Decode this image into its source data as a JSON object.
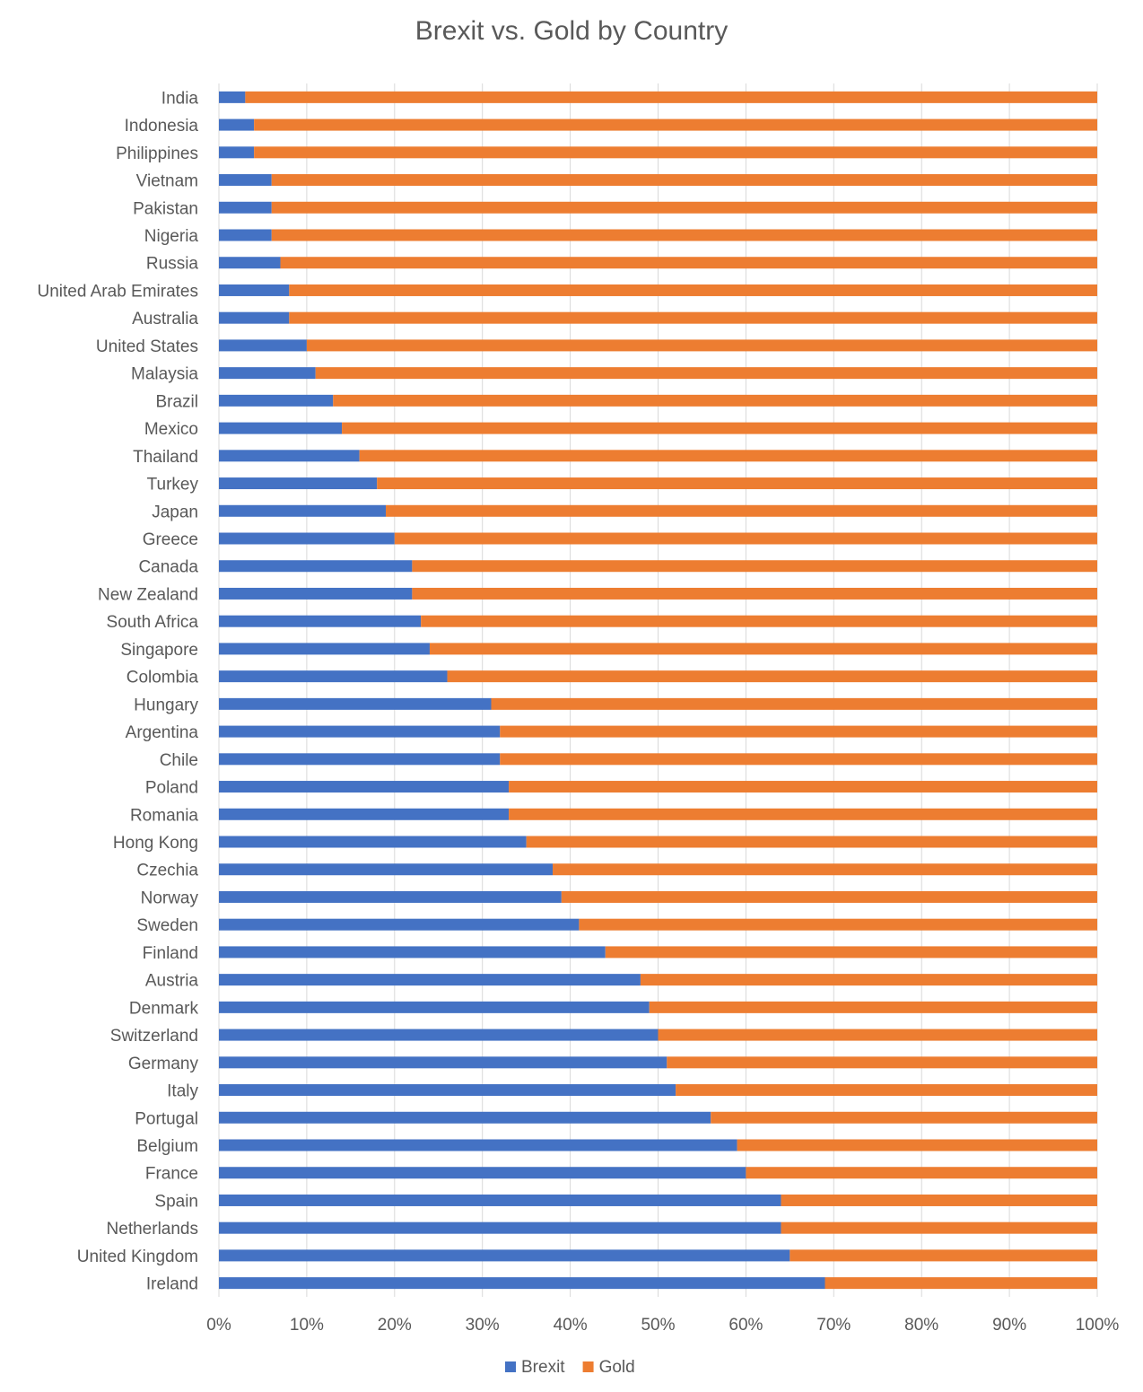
{
  "chart_data": {
    "type": "bar",
    "orientation": "horizontal",
    "stacked": "percent",
    "title": "Brexit vs. Gold by Country",
    "categories": [
      "India",
      "Indonesia",
      "Philippines",
      "Vietnam",
      "Pakistan",
      "Nigeria",
      "Russia",
      "United Arab Emirates",
      "Australia",
      "United States",
      "Malaysia",
      "Brazil",
      "Mexico",
      "Thailand",
      "Turkey",
      "Japan",
      "Greece",
      "Canada",
      "New Zealand",
      "South Africa",
      "Singapore",
      "Colombia",
      "Hungary",
      "Argentina",
      "Chile",
      "Poland",
      "Romania",
      "Hong Kong",
      "Czechia",
      "Norway",
      "Sweden",
      "Finland",
      "Austria",
      "Denmark",
      "Switzerland",
      "Germany",
      "Italy",
      "Portugal",
      "Belgium",
      "France",
      "Spain",
      "Netherlands",
      "United Kingdom",
      "Ireland"
    ],
    "series": [
      {
        "name": "Brexit",
        "color": "#4472C4",
        "values": [
          3,
          4,
          4,
          6,
          6,
          6,
          7,
          8,
          8,
          10,
          11,
          13,
          14,
          16,
          18,
          19,
          20,
          22,
          22,
          23,
          24,
          26,
          31,
          32,
          32,
          33,
          33,
          35,
          38,
          39,
          41,
          44,
          48,
          49,
          50,
          51,
          52,
          56,
          59,
          60,
          64,
          64,
          65,
          69
        ]
      },
      {
        "name": "Gold",
        "color": "#ED7D31",
        "values": [
          97,
          96,
          96,
          94,
          94,
          94,
          93,
          92,
          92,
          90,
          89,
          87,
          86,
          84,
          82,
          81,
          80,
          78,
          78,
          77,
          76,
          74,
          69,
          68,
          68,
          67,
          67,
          65,
          62,
          61,
          59,
          56,
          52,
          51,
          50,
          49,
          48,
          44,
          41,
          40,
          36,
          36,
          35,
          31
        ]
      }
    ],
    "xlim": [
      0,
      100
    ],
    "xticks": [
      "0%",
      "10%",
      "20%",
      "30%",
      "40%",
      "50%",
      "60%",
      "70%",
      "80%",
      "90%",
      "100%"
    ],
    "grid": "vertical",
    "legend": "bottom"
  }
}
